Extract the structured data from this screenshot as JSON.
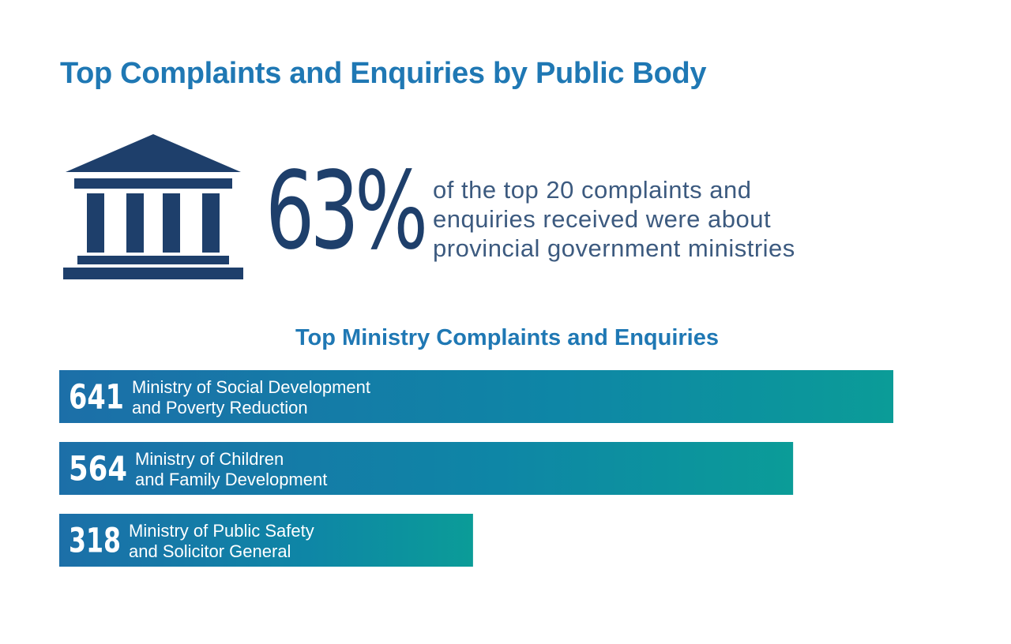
{
  "header": {
    "title": "Top Complaints and Enquiries by Public Body"
  },
  "highlight": {
    "stat": "63%",
    "lines": [
      "of the top 20 complaints and",
      "enquiries received were about",
      "provincial government ministries"
    ]
  },
  "chart_data": {
    "type": "bar",
    "orientation": "horizontal",
    "title": "Top Ministry Complaints and Enquiries",
    "categories": [
      [
        "Ministry of Social Development",
        "and Poverty Reduction"
      ],
      [
        "Ministry of Children",
        "and Family Development"
      ],
      [
        "Ministry of Public Safety",
        "and Solicitor General"
      ]
    ],
    "values": [
      641,
      564,
      318
    ],
    "value_labels": [
      "641",
      "564",
      "318"
    ],
    "xlim": [
      0,
      641
    ],
    "colors": {
      "start": "#1c6fa8",
      "end": "#0b9c98"
    }
  },
  "colors": {
    "title": "#1f78b4",
    "icon": "#1e3f6b",
    "stat": "#1e3f6b",
    "stat_text": "#3c5a7f"
  },
  "icons": [
    "government-building-icon"
  ]
}
